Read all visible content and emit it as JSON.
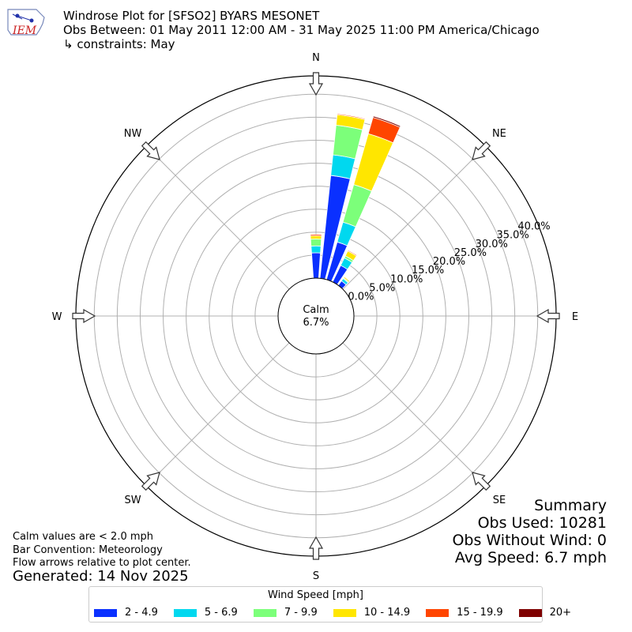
{
  "header": {
    "title": "Windrose Plot for [SFSO2] BYARS MESONET",
    "period": "Obs Between: 01 May 2011 12:00 AM - 31 May 2025 11:00 PM America/Chicago",
    "constraints": "↳ constraints: May",
    "logo_text": "IEM"
  },
  "notes": {
    "calm_def": "Calm values are < 2.0 mph",
    "bar_convention": "Bar Convention: Meteorology",
    "flow_arrows": "Flow arrows relative to plot center.",
    "generated": "Generated: 14 Nov 2025"
  },
  "summary": {
    "title": "Summary",
    "obs_used": "Obs Used: 10281",
    "obs_without_wind": "Obs Without Wind: 0",
    "avg_speed": "Avg Speed: 6.7 mph"
  },
  "chart_data": {
    "type": "windrose",
    "calm": {
      "label": "Calm",
      "value_label": "6.7%",
      "percent": 6.7
    },
    "directions": [
      "N",
      "NE",
      "E",
      "SE",
      "S",
      "SW",
      "W",
      "NW"
    ],
    "direction_angles_deg": [
      0,
      45,
      90,
      135,
      180,
      225,
      270,
      315
    ],
    "radial_ticks": [
      "0.0%",
      "5.0%",
      "10.0%",
      "15.0%",
      "20.0%",
      "25.0%",
      "30.0%",
      "35.0%",
      "40.0%"
    ],
    "radial_max_percent": 44,
    "legend_title": "Wind Speed [mph]",
    "bins": [
      {
        "label": "2 - 4.9",
        "color": "#0a30ff"
      },
      {
        "label": "5 - 6.9",
        "color": "#00d8ef"
      },
      {
        "label": "7 - 9.9",
        "color": "#7cff7a"
      },
      {
        "label": "10 - 14.9",
        "color": "#ffe600"
      },
      {
        "label": "15 - 19.9",
        "color": "#ff4500"
      },
      {
        "label": "20+",
        "color": "#7f0000"
      }
    ],
    "bars": [
      {
        "direction_deg": 0,
        "cumulative_percent": [
          5.5,
          7.0,
          8.5,
          9.2,
          9.5,
          9.5
        ]
      },
      {
        "direction_deg": 10,
        "cumulative_percent": [
          22.5,
          27.0,
          33.5,
          35.8,
          36.0,
          36.0
        ]
      },
      {
        "direction_deg": 20,
        "cumulative_percent": [
          8.5,
          13.0,
          21.5,
          33.0,
          36.7,
          37.0
        ]
      },
      {
        "direction_deg": 30,
        "cumulative_percent": [
          4.0,
          5.8,
          6.3,
          7.5,
          7.7,
          7.7
        ]
      },
      {
        "direction_deg": 40,
        "cumulative_percent": [
          1.2,
          1.8,
          2.0,
          2.3,
          2.4,
          2.4
        ]
      }
    ]
  }
}
